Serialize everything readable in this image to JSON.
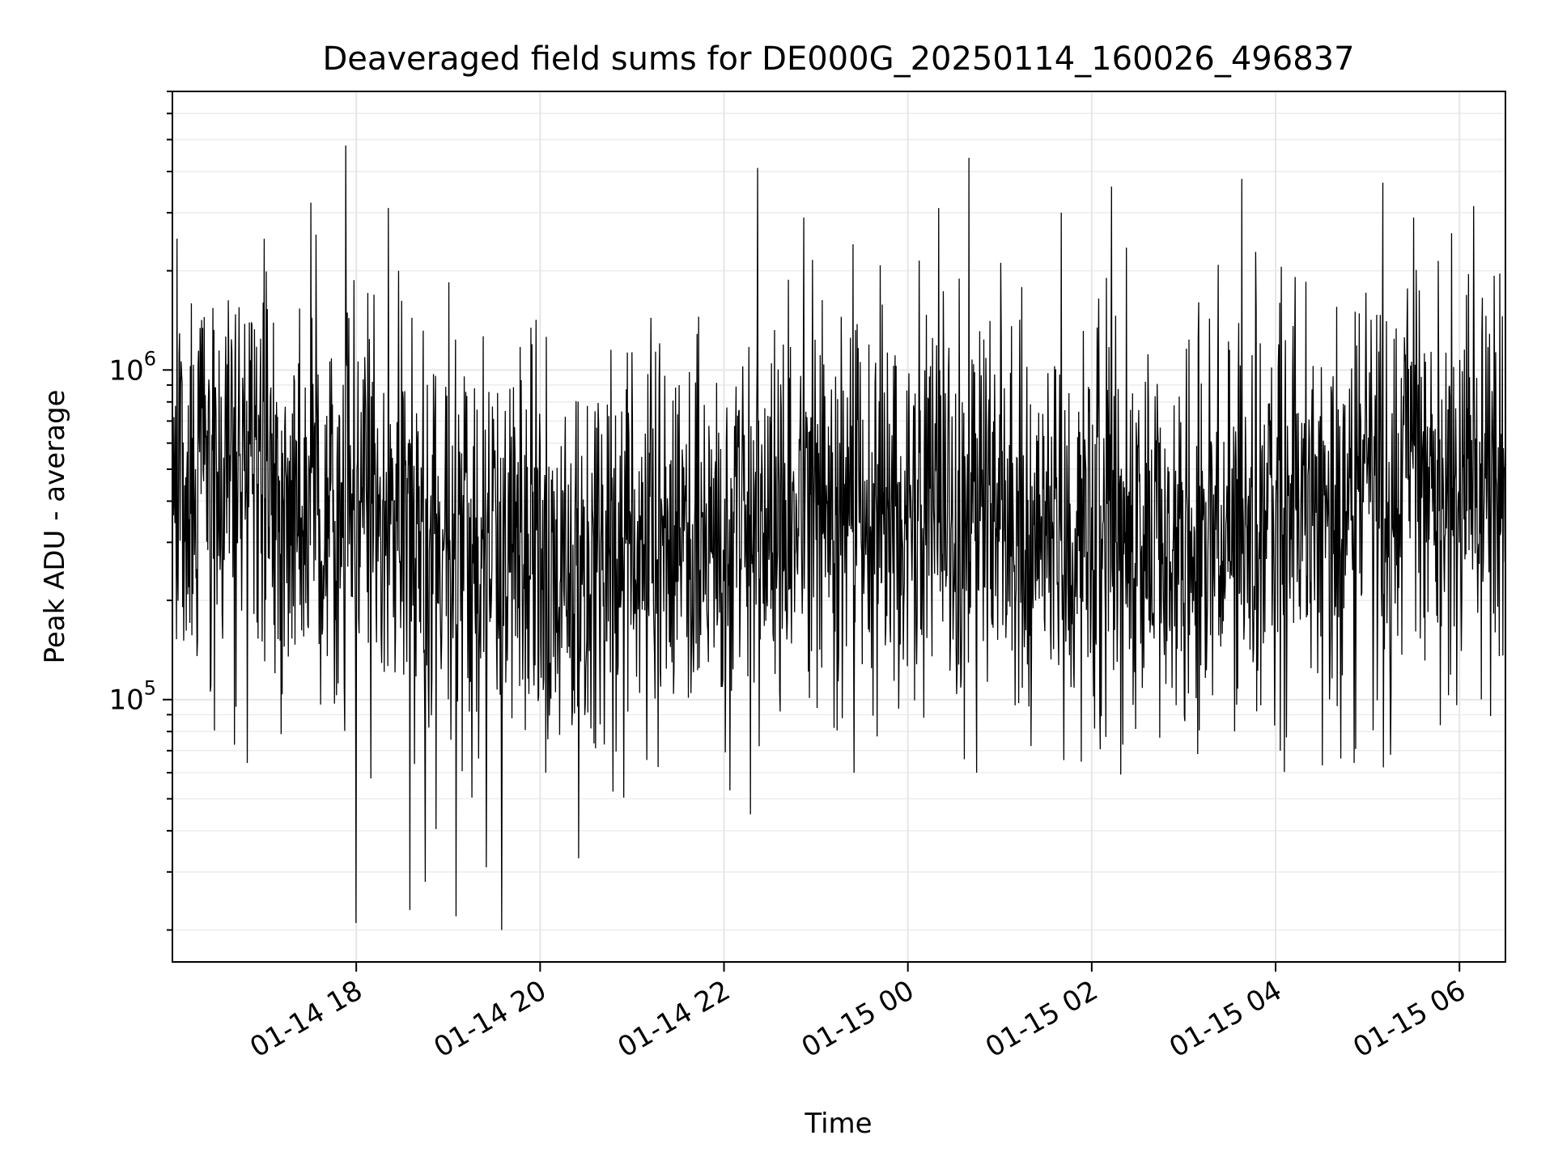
{
  "chart_data": {
    "type": "line",
    "title": "Deaveraged field sums for DE000G_20250114_160026_496837",
    "xlabel": "Time",
    "ylabel": "Peak ADU - average",
    "y_scale": "log",
    "grid": true,
    "line_color": "#000000",
    "xlim": [
      "2025-01-14 16:00",
      "2025-01-15 06:30"
    ],
    "ylim": [
      16000,
      7000000
    ],
    "x_ticks": [
      {
        "t": "2025-01-14 18:00",
        "label": "01-14 18"
      },
      {
        "t": "2025-01-14 20:00",
        "label": "01-14 20"
      },
      {
        "t": "2025-01-14 22:00",
        "label": "01-14 22"
      },
      {
        "t": "2025-01-15 00:00",
        "label": "01-15 00"
      },
      {
        "t": "2025-01-15 02:00",
        "label": "01-15 02"
      },
      {
        "t": "2025-01-15 04:00",
        "label": "01-15 04"
      },
      {
        "t": "2025-01-15 06:00",
        "label": "01-15 06"
      }
    ],
    "y_ticks": [
      {
        "value": 100000,
        "base": "10",
        "exp": "5"
      },
      {
        "value": 1000000,
        "base": "10",
        "exp": "6"
      }
    ],
    "series": [
      {
        "trend": [
          {
            "t": "2025-01-14 16:00",
            "y": 420000
          },
          {
            "t": "2025-01-14 17:00",
            "y": 480000
          },
          {
            "t": "2025-01-14 18:00",
            "y": 370000
          },
          {
            "t": "2025-01-14 19:00",
            "y": 280000
          },
          {
            "t": "2025-01-14 20:00",
            "y": 250000
          },
          {
            "t": "2025-01-14 21:00",
            "y": 270000
          },
          {
            "t": "2025-01-14 22:00",
            "y": 300000
          },
          {
            "t": "2025-01-14 23:00",
            "y": 380000
          },
          {
            "t": "2025-01-15 00:00",
            "y": 380000
          },
          {
            "t": "2025-01-15 01:00",
            "y": 350000
          },
          {
            "t": "2025-01-15 02:00",
            "y": 330000
          },
          {
            "t": "2025-01-15 03:00",
            "y": 340000
          },
          {
            "t": "2025-01-15 04:00",
            "y": 380000
          },
          {
            "t": "2025-01-15 05:00",
            "y": 470000
          },
          {
            "t": "2025-01-15 06:00",
            "y": 500000
          },
          {
            "t": "2025-01-15 06:30",
            "y": 400000
          }
        ],
        "peaks": [
          {
            "t": "2025-01-14 17:53",
            "y": 4800000
          },
          {
            "t": "2025-01-14 18:21",
            "y": 3100000
          },
          {
            "t": "2025-01-14 17:00",
            "y": 2500000
          },
          {
            "t": "2025-01-14 22:22",
            "y": 4100000
          },
          {
            "t": "2025-01-14 22:52",
            "y": 2900000
          },
          {
            "t": "2025-01-15 00:20",
            "y": 3100000
          },
          {
            "t": "2025-01-15 00:40",
            "y": 4400000
          },
          {
            "t": "2025-01-15 01:40",
            "y": 3000000
          },
          {
            "t": "2025-01-15 02:13",
            "y": 3600000
          },
          {
            "t": "2025-01-15 03:38",
            "y": 3800000
          },
          {
            "t": "2025-01-15 05:10",
            "y": 3700000
          },
          {
            "t": "2025-01-15 05:30",
            "y": 2900000
          },
          {
            "t": "2025-01-15 05:55",
            "y": 2600000
          }
        ],
        "troughs": [
          {
            "t": "2025-01-14 18:00",
            "y": 21000
          },
          {
            "t": "2025-01-14 19:35",
            "y": 20000
          },
          {
            "t": "2025-01-14 18:45",
            "y": 28000
          },
          {
            "t": "2025-01-14 19:05",
            "y": 22000
          },
          {
            "t": "2025-01-14 20:25",
            "y": 33000
          },
          {
            "t": "2025-01-14 19:25",
            "y": 31000
          },
          {
            "t": "2025-01-14 18:35",
            "y": 23000
          },
          {
            "t": "2025-01-14 23:25",
            "y": 60000
          },
          {
            "t": "2025-01-15 00:45",
            "y": 60000
          },
          {
            "t": "2025-01-15 04:03",
            "y": 70000
          },
          {
            "t": "2025-01-15 05:15",
            "y": 68000
          }
        ]
      }
    ]
  }
}
